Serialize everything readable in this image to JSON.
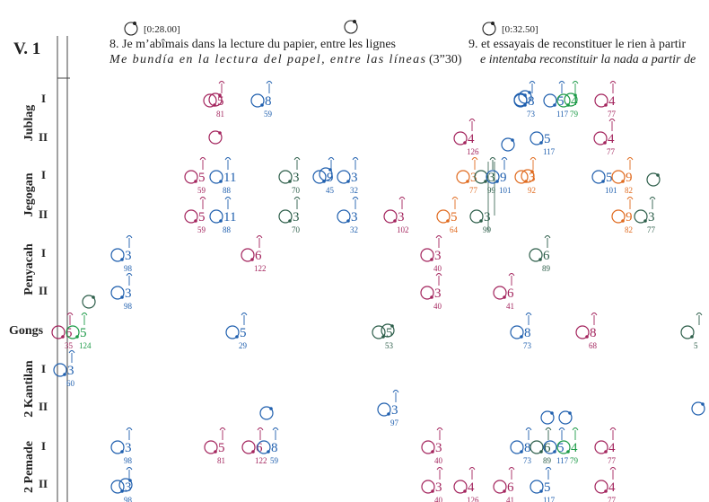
{
  "header": {
    "section": "V. 1",
    "clocks": [
      {
        "time": "[0:28.00]"
      },
      {
        "time": ""
      },
      {
        "time": "[0:32.50]"
      }
    ],
    "phrase8_fr": "8. Je m’abîmais dans la lecture du papier, entre les lignes",
    "phrase8_es": "Me bundía en la lectura del papel, entre las líneas",
    "phrase8_dur": "(3”30)",
    "phrase9_fr": "9. et essayais de reconstituer le rien à partir",
    "phrase9_es": "e intentaba reconstituir la nada a partir de"
  },
  "groups": [
    "Jublag",
    "Jegogan",
    "Penyacah",
    "Gongs",
    "2 Kantilan",
    "2 Pemade"
  ],
  "row_labels": [
    "I",
    "II",
    "I",
    "II",
    "I",
    "II",
    "I",
    "II",
    "I",
    "II"
  ],
  "colors": {
    "blue": "#1f5fae",
    "magenta": "#a3245d",
    "green": "#1c9a47",
    "orange": "#e06a1e",
    "teal": "#2d5e4a"
  },
  "notes": [
    {
      "n": "5",
      "s": "81",
      "c": "magenta"
    },
    {
      "n": "8",
      "s": "59",
      "c": "blue"
    },
    {
      "n": "8",
      "s": "73",
      "c": "blue"
    },
    {
      "n": "5",
      "s": "117",
      "c": "blue"
    },
    {
      "n": "4",
      "s": "79",
      "c": "green"
    },
    {
      "n": "4",
      "s": "77",
      "c": "magenta"
    },
    {
      "n": "4",
      "s": "126",
      "c": "magenta"
    },
    {
      "n": "5",
      "s": "117",
      "c": "blue"
    },
    {
      "n": "4",
      "s": "77",
      "c": "magenta"
    },
    {
      "n": "5",
      "s": "59",
      "c": "magenta"
    },
    {
      "n": "11",
      "s": "88",
      "c": "blue"
    },
    {
      "n": "3",
      "s": "70",
      "c": "teal"
    },
    {
      "n": "9",
      "s": "45",
      "c": "blue"
    },
    {
      "n": "3",
      "s": "32",
      "c": "blue"
    },
    {
      "n": "3",
      "s": "77",
      "c": "orange"
    },
    {
      "n": "3",
      "s": "99",
      "c": "teal"
    },
    {
      "n": "9",
      "s": "101",
      "c": "blue"
    },
    {
      "n": "3",
      "s": "92",
      "c": "orange"
    },
    {
      "n": "5",
      "s": "101",
      "c": "blue"
    },
    {
      "n": "9",
      "s": "82",
      "c": "orange"
    },
    {
      "n": "5",
      "s": "59",
      "c": "magenta"
    },
    {
      "n": "11",
      "s": "88",
      "c": "blue"
    },
    {
      "n": "3",
      "s": "70",
      "c": "teal"
    },
    {
      "n": "3",
      "s": "32",
      "c": "blue"
    },
    {
      "n": "3",
      "s": "102",
      "c": "magenta"
    },
    {
      "n": "5",
      "s": "64",
      "c": "orange"
    },
    {
      "n": "3",
      "s": "99",
      "c": "teal"
    },
    {
      "n": "9",
      "s": "82",
      "c": "orange"
    },
    {
      "n": "3",
      "s": "77",
      "c": "teal"
    },
    {
      "n": "3",
      "s": "98",
      "c": "blue"
    },
    {
      "n": "6",
      "s": "122",
      "c": "magenta"
    },
    {
      "n": "3",
      "s": "40",
      "c": "magenta"
    },
    {
      "n": "6",
      "s": "89",
      "c": "teal"
    },
    {
      "n": "3",
      "s": "98",
      "c": "blue"
    },
    {
      "n": "3",
      "s": "40",
      "c": "magenta"
    },
    {
      "n": "6",
      "s": "41",
      "c": "magenta"
    },
    {
      "n": "5",
      "s": "35",
      "c": "magenta"
    },
    {
      "n": "5",
      "s": "124",
      "c": "green"
    },
    {
      "n": "5",
      "s": "29",
      "c": "blue"
    },
    {
      "n": "5",
      "s": "53",
      "c": "teal"
    },
    {
      "n": "8",
      "s": "73",
      "c": "blue"
    },
    {
      "n": "8",
      "s": "68",
      "c": "magenta"
    },
    {
      "n": "",
      "s": "5",
      "c": "teal"
    },
    {
      "n": "3",
      "s": "60",
      "c": "blue"
    },
    {
      "n": "3",
      "s": "97",
      "c": "blue"
    },
    {
      "n": "3",
      "s": "98",
      "c": "blue"
    },
    {
      "n": "5",
      "s": "81",
      "c": "magenta"
    },
    {
      "n": "6",
      "s": "122",
      "c": "magenta"
    },
    {
      "n": "8",
      "s": "59",
      "c": "blue"
    },
    {
      "n": "3",
      "s": "40",
      "c": "magenta"
    },
    {
      "n": "8",
      "s": "73",
      "c": "blue"
    },
    {
      "n": "6",
      "s": "89",
      "c": "teal"
    },
    {
      "n": "5",
      "s": "117",
      "c": "blue"
    },
    {
      "n": "4",
      "s": "79",
      "c": "green"
    },
    {
      "n": "4",
      "s": "77",
      "c": "magenta"
    },
    {
      "n": "3",
      "s": "98",
      "c": "blue"
    },
    {
      "n": "3",
      "s": "40",
      "c": "magenta"
    },
    {
      "n": "4",
      "s": "126",
      "c": "magenta"
    },
    {
      "n": "6",
      "s": "41",
      "c": "magenta"
    },
    {
      "n": "5",
      "s": "117",
      "c": "blue"
    },
    {
      "n": "4",
      "s": "77",
      "c": "magenta"
    }
  ],
  "extra_circles": [
    {
      "c": "teal"
    },
    {
      "c": "blue"
    },
    {
      "c": "magenta"
    },
    {
      "c": "magenta"
    },
    {
      "c": "blue"
    },
    {
      "c": "blue"
    },
    {
      "c": "blue"
    },
    {
      "c": "green"
    },
    {
      "c": "orange"
    },
    {
      "c": "teal"
    },
    {
      "c": "blue"
    },
    {
      "c": "blue"
    },
    {
      "c": "teal"
    },
    {
      "c": "blue"
    },
    {
      "c": "blue"
    },
    {
      "c": "blue"
    }
  ]
}
